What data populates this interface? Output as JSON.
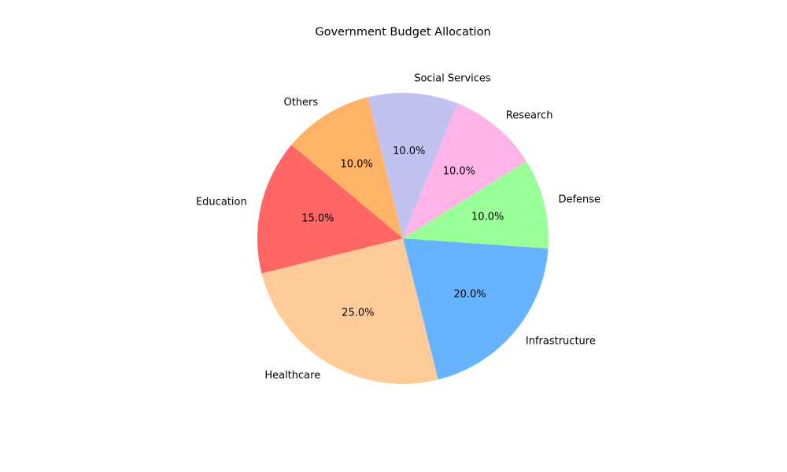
{
  "chart_data": {
    "type": "pie",
    "title": "Government Budget Allocation",
    "categories": [
      "Education",
      "Healthcare",
      "Infrastructure",
      "Defense",
      "Research",
      "Social Services",
      "Others"
    ],
    "values": [
      15,
      25,
      20,
      10,
      10,
      10,
      10
    ],
    "percent_labels": [
      "15.0%",
      "25.0%",
      "20.0%",
      "10.0%",
      "10.0%",
      "10.0%",
      "10.0%"
    ],
    "colors": [
      "#ff6666",
      "#ffcc99",
      "#66b3ff",
      "#99ff99",
      "#ffb3e6",
      "#c2c2f0",
      "#ffb366"
    ],
    "start_angle_deg": 140,
    "direction": "counterclockwise",
    "legend": "none"
  }
}
